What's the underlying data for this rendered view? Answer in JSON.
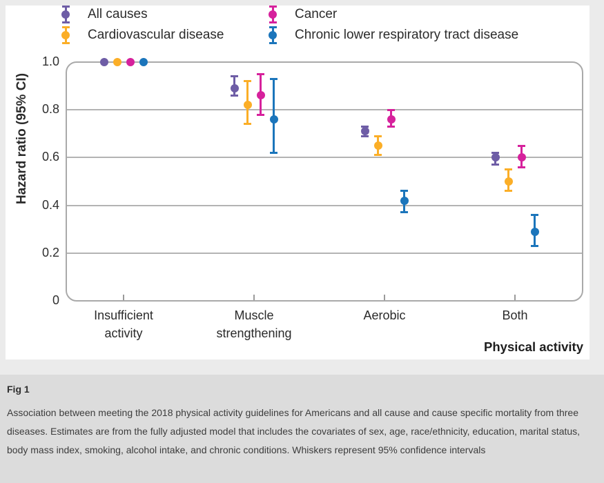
{
  "figure": {
    "caption_title": "Fig 1",
    "caption_body": "Association between meeting the 2018 physical activity guidelines for Americans and all cause and cause specific mortality from three diseases. Estimates are from the fully adjusted model that includes the covariates of sex, age, race/ethnicity, education, marital status, body mass index, smoking, alcohol intake, and chronic conditions. Whiskers represent 95% confidence intervals"
  },
  "chart_data": {
    "type": "scatter",
    "subtype": "point-estimates-with-95ci-whiskers",
    "title": "",
    "ylabel": "Hazard ratio (95% CI)",
    "xlabel": "Physical activity",
    "ylim": [
      0,
      1.0
    ],
    "grid": "horizontal",
    "legend_position": "top",
    "yticks": [
      {
        "label": "1.0",
        "value": 1.0
      },
      {
        "label": "0.8",
        "value": 0.8
      },
      {
        "label": "0.6",
        "value": 0.6
      },
      {
        "label": "0.4",
        "value": 0.4
      },
      {
        "label": "0.2",
        "value": 0.2
      },
      {
        "label": "0",
        "value": 0.0
      }
    ],
    "categories": [
      {
        "label": "Insufficient activity",
        "lines": [
          "Insufficient",
          "activity"
        ]
      },
      {
        "label": "Muscle strengthening",
        "lines": [
          "Muscle",
          "strengthening"
        ]
      },
      {
        "label": "Aerobic",
        "lines": [
          "Aerobic"
        ]
      },
      {
        "label": "Both",
        "lines": [
          "Both"
        ]
      }
    ],
    "series": [
      {
        "name": "All causes",
        "color": "#6E5DA6",
        "points": [
          {
            "hr": 1.0
          },
          {
            "hr": 0.89,
            "lo": 0.86,
            "hi": 0.94
          },
          {
            "hr": 0.71,
            "lo": 0.69,
            "hi": 0.73
          },
          {
            "hr": 0.6,
            "lo": 0.57,
            "hi": 0.62
          }
        ]
      },
      {
        "name": "Cardiovascular disease",
        "color": "#FBAE27",
        "points": [
          {
            "hr": 1.0
          },
          {
            "hr": 0.82,
            "lo": 0.74,
            "hi": 0.92
          },
          {
            "hr": 0.65,
            "lo": 0.61,
            "hi": 0.69
          },
          {
            "hr": 0.5,
            "lo": 0.46,
            "hi": 0.55
          }
        ]
      },
      {
        "name": "Cancer",
        "color": "#D6219C",
        "points": [
          {
            "hr": 1.0
          },
          {
            "hr": 0.86,
            "lo": 0.78,
            "hi": 0.95
          },
          {
            "hr": 0.76,
            "lo": 0.73,
            "hi": 0.8
          },
          {
            "hr": 0.6,
            "lo": 0.56,
            "hi": 0.65
          }
        ]
      },
      {
        "name": "Chronic lower respiratory tract disease",
        "color": "#1B75BB",
        "points": [
          {
            "hr": 1.0
          },
          {
            "hr": 0.76,
            "lo": 0.62,
            "hi": 0.93
          },
          {
            "hr": 0.42,
            "lo": 0.37,
            "hi": 0.46
          },
          {
            "hr": 0.29,
            "lo": 0.23,
            "hi": 0.36
          }
        ]
      }
    ]
  }
}
